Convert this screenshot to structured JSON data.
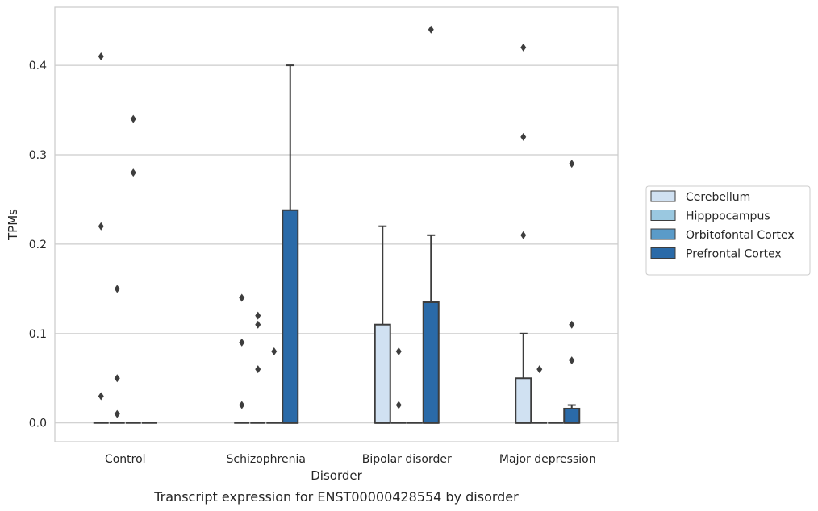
{
  "chart_data": {
    "type": "boxplot",
    "xlabel": "Disorder",
    "ylabel": "TPMs",
    "caption": "Transcript expression for ENST00000428554 by disorder",
    "ylim": [
      -0.021,
      0.465
    ],
    "yticks": [
      0.0,
      0.1,
      0.2,
      0.3,
      0.4
    ],
    "ytick_labels": [
      "0.0",
      "0.1",
      "0.2",
      "0.3",
      "0.4"
    ],
    "grid": "horizontal",
    "legend_position": "right",
    "categories": [
      "Control",
      "Schizophrenia",
      "Bipolar disorder",
      "Major depression"
    ],
    "series": [
      {
        "name": "Cerebellum",
        "color": "#d0e1f2",
        "boxes": [
          {
            "q1": 0,
            "median": 0,
            "q3": 0,
            "whislo": 0,
            "whishi": 0,
            "fliers": [
              0.03,
              0.22,
              0.41
            ]
          },
          {
            "q1": 0,
            "median": 0,
            "q3": 0,
            "whislo": 0,
            "whishi": 0,
            "fliers": [
              0.02,
              0.09,
              0.14
            ]
          },
          {
            "q1": 0,
            "median": 0,
            "q3": 0.11,
            "whislo": 0,
            "whishi": 0.22,
            "fliers": []
          },
          {
            "q1": 0,
            "median": 0,
            "q3": 0.05,
            "whislo": 0,
            "whishi": 0.1,
            "fliers": [
              0.21,
              0.32,
              0.42
            ]
          }
        ]
      },
      {
        "name": "Hipppocampus",
        "color": "#9ac8e0",
        "boxes": [
          {
            "q1": 0,
            "median": 0,
            "q3": 0,
            "whislo": 0,
            "whishi": 0,
            "fliers": [
              0.01,
              0.05,
              0.15
            ]
          },
          {
            "q1": 0,
            "median": 0,
            "q3": 0,
            "whislo": 0,
            "whishi": 0,
            "fliers": [
              0.06,
              0.11,
              0.12
            ]
          },
          {
            "q1": 0,
            "median": 0,
            "q3": 0,
            "whislo": 0,
            "whishi": 0,
            "fliers": [
              0.02,
              0.08
            ]
          },
          {
            "q1": 0,
            "median": 0,
            "q3": 0,
            "whislo": 0,
            "whishi": 0,
            "fliers": [
              0.06
            ]
          }
        ]
      },
      {
        "name": "Orbitofontal Cortex",
        "color": "#5a9bc9",
        "boxes": [
          {
            "q1": 0,
            "median": 0,
            "q3": 0,
            "whislo": 0,
            "whishi": 0,
            "fliers": [
              0.28,
              0.34
            ]
          },
          {
            "q1": 0,
            "median": 0,
            "q3": 0,
            "whislo": 0,
            "whishi": 0,
            "fliers": [
              0.08
            ]
          },
          {
            "q1": 0,
            "median": 0,
            "q3": 0,
            "whislo": 0,
            "whishi": 0,
            "fliers": []
          },
          {
            "q1": 0,
            "median": 0,
            "q3": 0,
            "whislo": 0,
            "whishi": 0,
            "fliers": []
          }
        ]
      },
      {
        "name": "Prefrontal Cortex",
        "color": "#2a6aa8",
        "boxes": [
          {
            "q1": 0,
            "median": 0,
            "q3": 0,
            "whislo": 0,
            "whishi": 0,
            "fliers": []
          },
          {
            "q1": 0,
            "median": 0,
            "q3": 0.238,
            "whislo": 0,
            "whishi": 0.4,
            "fliers": []
          },
          {
            "q1": 0,
            "median": 0,
            "q3": 0.135,
            "whislo": 0,
            "whishi": 0.21,
            "fliers": [
              0.44
            ]
          },
          {
            "q1": 0,
            "median": 0,
            "q3": 0.016,
            "whislo": 0,
            "whishi": 0.02,
            "fliers": [
              0.07,
              0.11,
              0.29
            ]
          }
        ]
      }
    ]
  }
}
